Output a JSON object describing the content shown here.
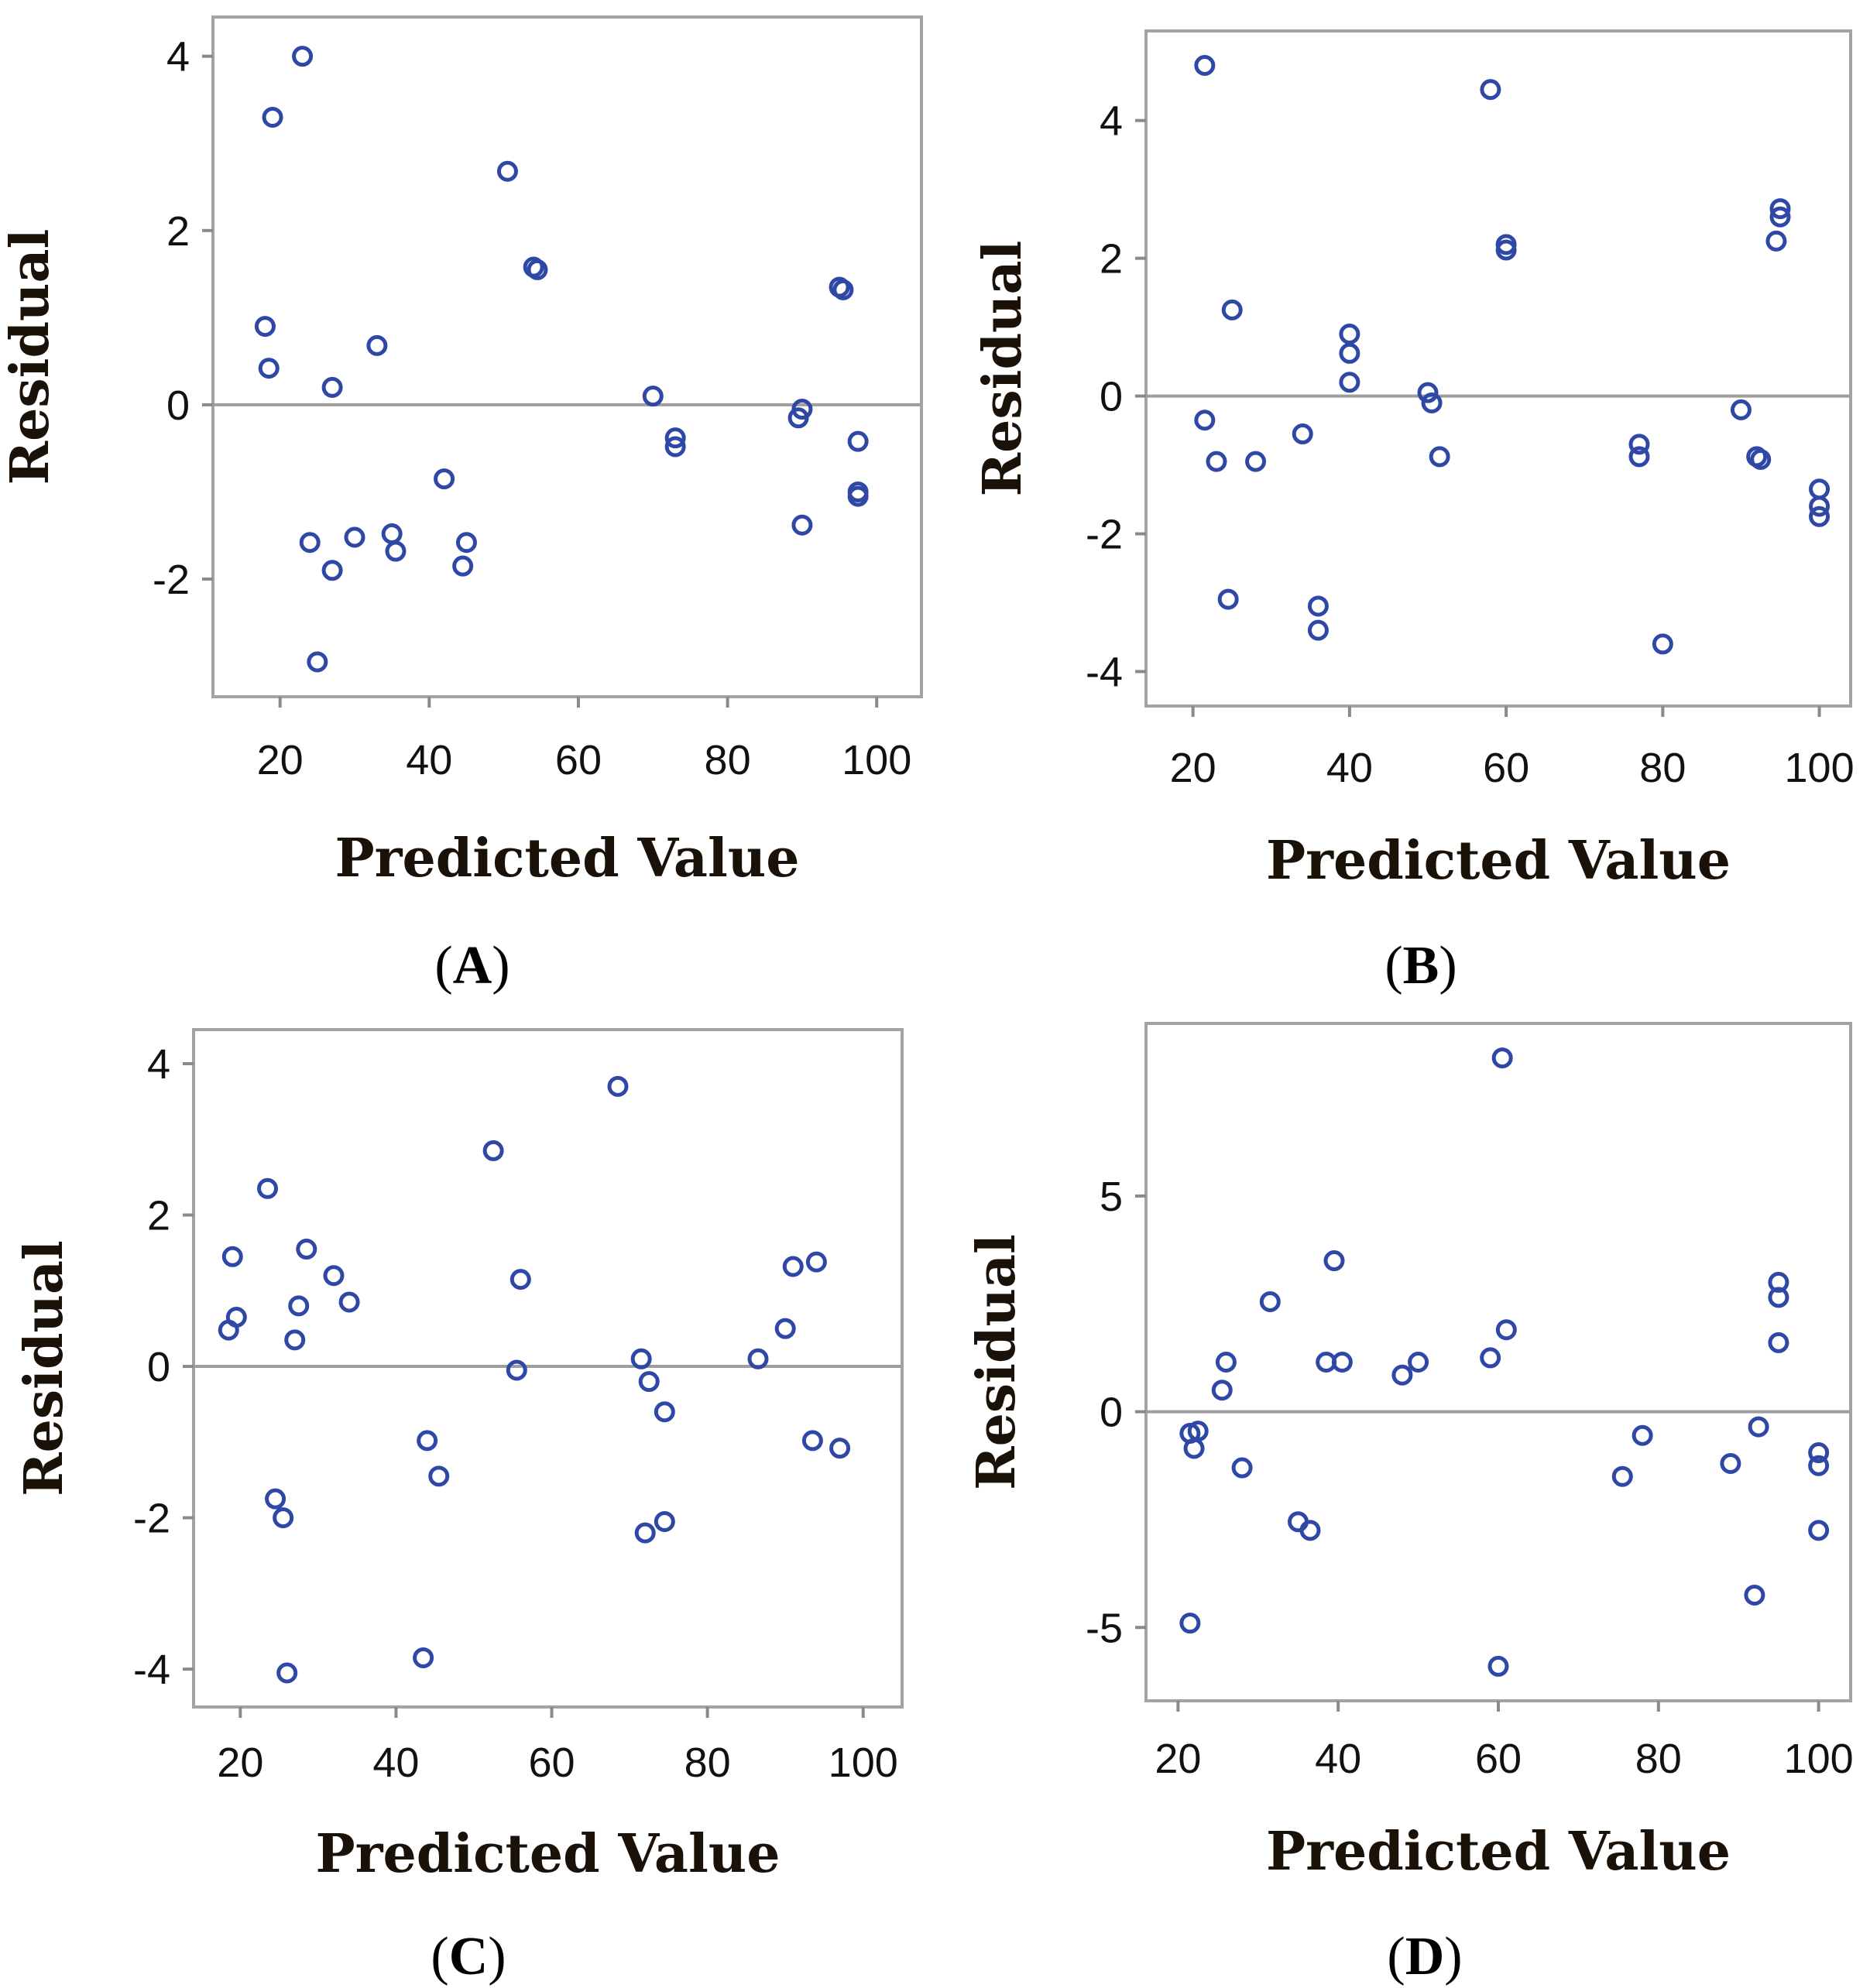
{
  "figure": {
    "point_color": "#2f48a6",
    "frame_color": "#a3a3a3",
    "reference_line_color": "#9e9e9e",
    "marker": "open-circle"
  },
  "chart_data": [
    {
      "id": "A",
      "type": "scatter",
      "panel_label": "(A)",
      "caption_open": "(",
      "caption_letter": "A",
      "caption_close": ")",
      "xlabel": "Predicted Value",
      "ylabel": "Residual",
      "xlim": [
        11,
        106
      ],
      "ylim": [
        -3.35,
        4.45
      ],
      "xticks": [
        20,
        40,
        60,
        80,
        100
      ],
      "yticks": [
        -2,
        0,
        2,
        4
      ],
      "ytick_labels": [
        "-2",
        "0",
        "2",
        "4"
      ],
      "reference_line_y": 0,
      "points": [
        [
          23,
          4.0
        ],
        [
          19,
          3.3
        ],
        [
          18,
          0.9
        ],
        [
          18.5,
          0.42
        ],
        [
          27,
          0.2
        ],
        [
          33,
          0.68
        ],
        [
          24,
          -1.58
        ],
        [
          30,
          -1.52
        ],
        [
          27,
          -1.9
        ],
        [
          25,
          -2.95
        ],
        [
          35,
          -1.48
        ],
        [
          35.5,
          -1.68
        ],
        [
          42,
          -0.85
        ],
        [
          44.5,
          -1.85
        ],
        [
          45,
          -1.58
        ],
        [
          50.5,
          2.68
        ],
        [
          54,
          1.58
        ],
        [
          54.5,
          1.55
        ],
        [
          70,
          0.1
        ],
        [
          73,
          -0.38
        ],
        [
          73,
          -0.48
        ],
        [
          89.5,
          -0.15
        ],
        [
          90,
          -0.05
        ],
        [
          90,
          -1.38
        ],
        [
          95,
          1.35
        ],
        [
          95.5,
          1.32
        ],
        [
          97.5,
          -0.42
        ],
        [
          97.5,
          -1.0
        ],
        [
          97.5,
          -1.05
        ]
      ]
    },
    {
      "id": "B",
      "type": "scatter",
      "panel_label": "(B)",
      "caption_open": "(",
      "caption_letter": "B",
      "caption_close": ")",
      "xlabel": "Predicted Value",
      "ylabel": "Residual",
      "xlim": [
        14,
        104
      ],
      "ylim": [
        -4.5,
        5.3
      ],
      "xticks": [
        20,
        40,
        60,
        80,
        100
      ],
      "yticks": [
        -4,
        -2,
        0,
        2,
        4
      ],
      "ytick_labels": [
        "-4",
        "-2",
        "0",
        "2",
        "4"
      ],
      "reference_line_y": 0,
      "points": [
        [
          21.5,
          4.8
        ],
        [
          21.5,
          -0.35
        ],
        [
          23,
          -0.95
        ],
        [
          28,
          -0.95
        ],
        [
          25,
          1.25
        ],
        [
          24.5,
          -2.95
        ],
        [
          34,
          -0.55
        ],
        [
          36,
          -3.05
        ],
        [
          36,
          -3.4
        ],
        [
          40,
          0.9
        ],
        [
          40,
          0.62
        ],
        [
          40,
          0.2
        ],
        [
          50,
          0.05
        ],
        [
          50.5,
          -0.1
        ],
        [
          51.5,
          -0.88
        ],
        [
          58,
          4.45
        ],
        [
          60,
          2.2
        ],
        [
          60,
          2.12
        ],
        [
          77,
          -0.7
        ],
        [
          77,
          -0.88
        ],
        [
          80,
          -3.6
        ],
        [
          90,
          -0.2
        ],
        [
          92,
          -0.88
        ],
        [
          92.5,
          -0.92
        ],
        [
          94.5,
          2.25
        ],
        [
          95,
          2.6
        ],
        [
          95,
          2.72
        ],
        [
          100,
          -1.35
        ],
        [
          100,
          -1.6
        ],
        [
          100,
          -1.75
        ]
      ]
    },
    {
      "id": "C",
      "type": "scatter",
      "panel_label": "(C)",
      "caption_open": "(",
      "caption_letter": "C",
      "caption_close": ")",
      "xlabel": "Predicted Value",
      "ylabel": "Residual",
      "xlim": [
        14,
        105
      ],
      "ylim": [
        -4.5,
        4.45
      ],
      "xticks": [
        20,
        40,
        60,
        80,
        100
      ],
      "yticks": [
        -4,
        -2,
        0,
        2,
        4
      ],
      "ytick_labels": [
        "-4",
        "-2",
        "0",
        "2",
        "4"
      ],
      "reference_line_y": 0,
      "points": [
        [
          19,
          1.45
        ],
        [
          19.5,
          0.65
        ],
        [
          18.5,
          0.48
        ],
        [
          23.5,
          2.35
        ],
        [
          28.5,
          1.55
        ],
        [
          32,
          1.2
        ],
        [
          34,
          0.85
        ],
        [
          27.5,
          0.8
        ],
        [
          27,
          0.35
        ],
        [
          24.5,
          -1.75
        ],
        [
          25.5,
          -2.0
        ],
        [
          26,
          -4.05
        ],
        [
          44,
          -0.98
        ],
        [
          45.5,
          -1.45
        ],
        [
          43.5,
          -3.85
        ],
        [
          52.5,
          2.85
        ],
        [
          56,
          1.15
        ],
        [
          55.5,
          -0.05
        ],
        [
          68.5,
          3.7
        ],
        [
          71.5,
          0.1
        ],
        [
          72.5,
          -0.2
        ],
        [
          74.5,
          -0.6
        ],
        [
          72,
          -2.2
        ],
        [
          74.5,
          -2.05
        ],
        [
          86.5,
          0.1
        ],
        [
          90,
          0.5
        ],
        [
          91,
          1.32
        ],
        [
          94,
          1.38
        ],
        [
          93.5,
          -0.98
        ],
        [
          97,
          -1.08
        ]
      ]
    },
    {
      "id": "D",
      "type": "scatter",
      "panel_label": "(D)",
      "caption_open": "(",
      "caption_letter": "D",
      "caption_close": ")",
      "xlabel": "Predicted Value",
      "ylabel": "Residual",
      "xlim": [
        16,
        104
      ],
      "ylim": [
        -6.7,
        9.0
      ],
      "xticks": [
        20,
        40,
        60,
        80,
        100
      ],
      "yticks": [
        -5,
        0,
        5
      ],
      "ytick_labels": [
        "-5",
        "0",
        "5"
      ],
      "reference_line_y": 0,
      "points": [
        [
          21.5,
          -0.5
        ],
        [
          22,
          -0.85
        ],
        [
          22.5,
          -0.45
        ],
        [
          21.5,
          -4.9
        ],
        [
          25.5,
          0.5
        ],
        [
          26,
          1.15
        ],
        [
          28,
          -1.3
        ],
        [
          31.5,
          2.55
        ],
        [
          35,
          -2.55
        ],
        [
          36.5,
          -2.75
        ],
        [
          38.5,
          1.15
        ],
        [
          40.5,
          1.15
        ],
        [
          39.5,
          3.5
        ],
        [
          48,
          0.85
        ],
        [
          50,
          1.15
        ],
        [
          59,
          1.25
        ],
        [
          61,
          1.9
        ],
        [
          60.5,
          8.2
        ],
        [
          60,
          -5.9
        ],
        [
          75.5,
          -1.5
        ],
        [
          78,
          -0.55
        ],
        [
          89,
          -1.2
        ],
        [
          92.5,
          -0.35
        ],
        [
          92,
          -4.25
        ],
        [
          95,
          3.0
        ],
        [
          95,
          2.65
        ],
        [
          95,
          1.6
        ],
        [
          100,
          -0.95
        ],
        [
          100,
          -1.25
        ],
        [
          100,
          -2.75
        ]
      ]
    }
  ]
}
